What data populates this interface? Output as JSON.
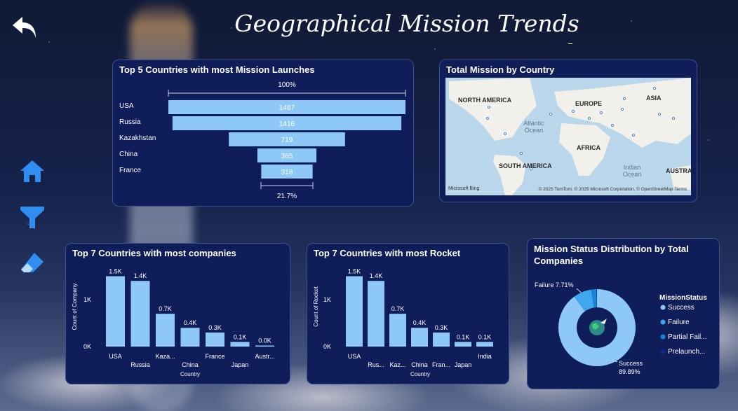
{
  "page": {
    "title": "Geographical Mission Trends"
  },
  "funnel": {
    "title": "Top 5 Countries with most Mission Launches",
    "top_pct": "100%",
    "bottom_pct": "21.7%",
    "chart_data": {
      "type": "bar",
      "categories": [
        "USA",
        "Russia",
        "Kazakhstan",
        "China",
        "France"
      ],
      "values": [
        1467,
        1416,
        719,
        365,
        318
      ],
      "value_labels": [
        "1467",
        "1416",
        "719",
        "365",
        "318"
      ],
      "bar_color": "#8ec8f6"
    }
  },
  "map": {
    "title": "Total Mission by Country",
    "labels": [
      "NORTH AMERICA",
      "EUROPE",
      "ASIA",
      "AFRICA",
      "SOUTH AMERICA",
      "AUSTRA"
    ],
    "oceans": [
      "Atlantic Ocean",
      "Indian Ocean"
    ],
    "logo": "Microsoft Bing",
    "attribution": "© 2025 TomTom, © 2025 Microsoft Corporation, © OpenStreetMap  Terms"
  },
  "companies": {
    "title": "Top 7 Countries with most companies",
    "chart_data": {
      "type": "bar",
      "categories": [
        "USA",
        "Russia",
        "Kaza...",
        "China",
        "France",
        "Japan",
        "Austr..."
      ],
      "values": [
        1500,
        1400,
        700,
        400,
        300,
        100,
        20
      ],
      "value_labels": [
        "1.5K",
        "1.4K",
        "0.7K",
        "0.4K",
        "0.3K",
        "0.1K",
        "0.0K"
      ],
      "xlabel": "Country",
      "ylabel": "Count of Company",
      "yticks": [
        "0K",
        "1K"
      ],
      "ylim": [
        0,
        1700
      ],
      "bar_color": "#8ec8f6"
    }
  },
  "rockets": {
    "title": "Top 7 Countries with most Rocket",
    "chart_data": {
      "type": "bar",
      "categories": [
        "USA",
        "Rus...",
        "Kaz...",
        "China",
        "Fran...",
        "Japan",
        "India"
      ],
      "values": [
        1500,
        1400,
        700,
        400,
        300,
        100,
        100
      ],
      "value_labels": [
        "1.5K",
        "1.4K",
        "0.7K",
        "0.4K",
        "0.3K",
        "0.1K",
        "0.1K"
      ],
      "xlabel": "Country",
      "ylabel": "Count of Rocket",
      "yticks": [
        "0K",
        "1K"
      ],
      "ylim": [
        0,
        1700
      ],
      "bar_color": "#8ec8f6"
    }
  },
  "status": {
    "title": "Mission Status Distribution by Total Companies",
    "failure_label": "Failure 7.71%",
    "success_label": "Success",
    "success_pct": "89.89%",
    "legend_title": "MissionStatus",
    "chart_data": {
      "type": "pie",
      "labels": [
        "Success",
        "Failure",
        "Partial Fail...",
        "Prelaunch..."
      ],
      "values": [
        89.89,
        7.71,
        2.2,
        0.2
      ],
      "colors": [
        "#8ec8f6",
        "#3fa7f0",
        "#1a84d8",
        "#0d2a8a"
      ]
    }
  },
  "colors": {
    "card_bg": "#0f1d58",
    "bar": "#8ec8f6",
    "nav_icon": "#2f8ef0"
  }
}
